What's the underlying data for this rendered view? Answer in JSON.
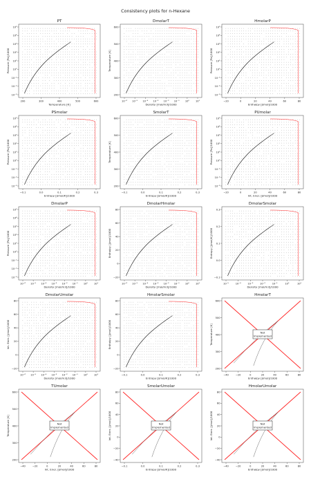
{
  "figure": {
    "title": "Consistency plots for n-Hexane"
  },
  "colors": {
    "grid_points": "#333333",
    "saturation_curve": "#111111",
    "boundary": "#ff1a1a",
    "frame": "#444444",
    "not_implemented_line": "#ff2222"
  },
  "chart_data": [
    {
      "name": "PT",
      "type": "scatter",
      "title": "PT",
      "xlabel": "Temperature [K]",
      "ylabel": "Pressure [Pa]/1000",
      "xticks": [
        "200",
        "300",
        "400",
        "500",
        "600"
      ],
      "yticks": [
        "10⁻³",
        "10⁻²",
        "10⁻¹",
        "10⁰",
        "10¹",
        "10²",
        "10³",
        "10⁴",
        "10⁵"
      ],
      "xlim": [
        180,
        620
      ],
      "ylim_log": [
        -3,
        5
      ],
      "saturation_curve": {
        "x": [
          178,
          200,
          250,
          300,
          350,
          400,
          450,
          500,
          507
        ],
        "y_log": [
          -3,
          -2,
          -0.3,
          0.9,
          1.7,
          2.35,
          2.85,
          3.35,
          3.5
        ]
      },
      "grid": false,
      "implemented": true
    },
    {
      "name": "DmolarT",
      "type": "scatter",
      "title": "DmolarT",
      "xlabel": "Density [mol/m3]/1000",
      "ylabel": "Temperature [K]",
      "xticks": [
        "10⁻⁶",
        "10⁻⁵",
        "10⁻⁴",
        "10⁻³",
        "10⁻²",
        "10⁻¹",
        "10⁰",
        "10¹"
      ],
      "xlim_log": [
        -6.5,
        1
      ],
      "yticks": [
        "200",
        "300",
        "400",
        "500",
        "600"
      ],
      "ylim": [
        170,
        610
      ],
      "implemented": true
    },
    {
      "name": "HmolarP",
      "type": "scatter",
      "title": "HmolarP",
      "xlabel": "Enthalpy [J/mol]/1000",
      "ylabel": "Pressure [Pa]/1000",
      "xticks": [
        "−20",
        "0",
        "20",
        "40",
        "60",
        "80"
      ],
      "xlim": [
        -30,
        85
      ],
      "yticks": [
        "10⁻³",
        "10⁻²",
        "10⁻¹",
        "10⁰",
        "10¹",
        "10²",
        "10³",
        "10⁴",
        "10⁵"
      ],
      "ylim_log": [
        -3,
        5
      ],
      "implemented": true
    },
    {
      "name": "PSmolar",
      "type": "scatter",
      "title": "PSmolar",
      "xlabel": "Entropy [J/mol/K]/1000",
      "ylabel": "Pressure [Pa]/1000",
      "xticks": [
        "−0.1",
        "0.0",
        "0.1",
        "0.2",
        "0.3"
      ],
      "xlim": [
        -0.13,
        0.3
      ],
      "yticks": [
        "10⁻³",
        "10⁻²",
        "10⁻¹",
        "10⁰",
        "10¹",
        "10²",
        "10³",
        "10⁴",
        "10⁵"
      ],
      "ylim_log": [
        -3,
        5
      ],
      "implemented": true
    },
    {
      "name": "SmolarT",
      "type": "scatter",
      "title": "SmolarT",
      "xlabel": "Entropy [J/mol/K]/1000",
      "ylabel": "Temperature [K]",
      "xticks": [
        "−0.1",
        "0.0",
        "0.1",
        "0.2",
        "0.3"
      ],
      "xlim": [
        -0.13,
        0.3
      ],
      "yticks": [
        "200",
        "300",
        "400",
        "500",
        "600"
      ],
      "ylim": [
        170,
        610
      ],
      "implemented": true
    },
    {
      "name": "PUmolar",
      "type": "scatter",
      "title": "PUmolar",
      "xlabel": "Int. Ener. [J/mol]/1000",
      "ylabel": "Pressure [Pa]/1000",
      "xticks": [
        "−20",
        "0",
        "20",
        "40",
        "60",
        "80"
      ],
      "xlim": [
        -30,
        85
      ],
      "yticks": [
        "10⁻³",
        "10⁻²",
        "10⁻¹",
        "10⁰",
        "10¹",
        "10²",
        "10³",
        "10⁴",
        "10⁵"
      ],
      "ylim_log": [
        -3,
        5
      ],
      "implemented": true
    },
    {
      "name": "DmolarP",
      "type": "scatter",
      "title": "DmolarP",
      "xlabel": "Density [mol/m3]/1000",
      "ylabel": "Pressure [Pa]/1000",
      "xticks": [
        "10⁻⁶",
        "10⁻⁵",
        "10⁻⁴",
        "10⁻³",
        "10⁻²",
        "10⁻¹",
        "10⁰",
        "10¹"
      ],
      "xlim_log": [
        -6.5,
        1
      ],
      "yticks": [
        "10⁻³",
        "10⁻²",
        "10⁻¹",
        "10⁰",
        "10¹",
        "10²",
        "10³",
        "10⁴",
        "10⁵"
      ],
      "ylim_log": [
        -3,
        5
      ],
      "implemented": true
    },
    {
      "name": "DmolarHmolar",
      "type": "scatter",
      "title": "DmolarHmolar",
      "xlabel": "Density [mol/m3]/1000",
      "ylabel": "Enthalpy [J/mol]/1000",
      "xticks": [
        "10⁻⁶",
        "10⁻⁵",
        "10⁻⁴",
        "10⁻³",
        "10⁻²",
        "10⁻¹",
        "10⁰",
        "10¹"
      ],
      "xlim_log": [
        -6.5,
        1
      ],
      "yticks": [
        "−20",
        "0",
        "20",
        "40",
        "60",
        "80"
      ],
      "ylim": [
        -30,
        85
      ],
      "implemented": true
    },
    {
      "name": "DmolarSmolar",
      "type": "scatter",
      "title": "DmolarSmolar",
      "xlabel": "Density [mol/m3]/1000",
      "ylabel": "Entropy [J/mol/K]/1000",
      "xticks": [
        "10⁻⁵",
        "10⁻⁴",
        "10⁻³",
        "10⁻²",
        "10⁻¹",
        "10⁰",
        "10¹"
      ],
      "xlim_log": [
        -5.5,
        1
      ],
      "yticks": [
        "−0.1",
        "0.0",
        "0.1",
        "0.2",
        "0.3"
      ],
      "ylim": [
        -0.13,
        0.3
      ],
      "implemented": true
    },
    {
      "name": "DmolarUmolar",
      "type": "scatter",
      "title": "DmolarUmolar",
      "xlabel": "Density [mol/m3]/1000",
      "ylabel": "Int. Ener. [J/mol]/1000",
      "xticks": [
        "10⁻⁶",
        "10⁻⁵",
        "10⁻⁴",
        "10⁻³",
        "10⁻²",
        "10⁻¹",
        "10⁰",
        "10¹"
      ],
      "xlim_log": [
        -6.5,
        1
      ],
      "yticks": [
        "−20",
        "0",
        "20",
        "40",
        "60",
        "80"
      ],
      "ylim": [
        -30,
        85
      ],
      "implemented": true
    },
    {
      "name": "HmolarSmolar",
      "type": "scatter",
      "title": "HmolarSmolar",
      "xlabel": "Entropy [J/mol/K]/1000",
      "ylabel": "Enthalpy [J/mol]/1000",
      "xticks": [
        "−0.1",
        "0.0",
        "0.1",
        "0.2",
        "0.3"
      ],
      "xlim": [
        -0.13,
        0.3
      ],
      "yticks": [
        "−20",
        "0",
        "20",
        "40",
        "60",
        "80"
      ],
      "ylim": [
        -30,
        85
      ],
      "implemented": true
    },
    {
      "name": "HmolarT",
      "type": "line",
      "title": "HmolarT",
      "xlabel": "Enthalpy [J/mol]/1000",
      "ylabel": "Temperature [K]",
      "xticks": [
        "−40",
        "−20",
        "0",
        "20",
        "40",
        "60",
        "80"
      ],
      "xlim": [
        -40,
        85
      ],
      "yticks": [
        "200",
        "300",
        "400",
        "500",
        "600"
      ],
      "ylim": [
        150,
        620
      ],
      "implemented": false,
      "note": "Not\nImplemented"
    },
    {
      "name": "TUmolar",
      "type": "line",
      "title": "TUmolar",
      "xlabel": "Int. Ener. [J/mol]/1000",
      "ylabel": "Temperature [K]",
      "xticks": [
        "−40",
        "−20",
        "0",
        "20",
        "40",
        "60",
        "80"
      ],
      "xlim": [
        -40,
        85
      ],
      "yticks": [
        "200",
        "300",
        "400",
        "500",
        "600"
      ],
      "ylim": [
        150,
        620
      ],
      "implemented": false,
      "note": "Not\nImplemented"
    },
    {
      "name": "SmolarUmolar",
      "type": "line",
      "title": "SmolarUmolar",
      "xlabel": "Entropy [J/mol/K]/1000",
      "ylabel": "Int. Ener. [J/mol]/1000",
      "xticks": [
        "−0.1",
        "0.0",
        "0.1",
        "0.2",
        "0.3"
      ],
      "xlim": [
        -0.13,
        0.3
      ],
      "yticks": [
        "−40",
        "−20",
        "0",
        "20",
        "40",
        "60",
        "80"
      ],
      "ylim": [
        -45,
        90
      ],
      "implemented": false,
      "note": "Not\nImplemented"
    },
    {
      "name": "HmolarUmolar",
      "type": "line",
      "title": "HmolarUmolar",
      "xlabel": "Enthalpy [J/mol]/1000",
      "ylabel": "Int. Ener. [J/mol]/1000",
      "xticks": [
        "−40",
        "−20",
        "0",
        "20",
        "40",
        "60",
        "80"
      ],
      "xlim": [
        -40,
        85
      ],
      "yticks": [
        "−40",
        "−20",
        "0",
        "20",
        "40",
        "60",
        "80"
      ],
      "ylim": [
        -45,
        90
      ],
      "implemented": false,
      "note": "Not\nImplemented"
    }
  ]
}
